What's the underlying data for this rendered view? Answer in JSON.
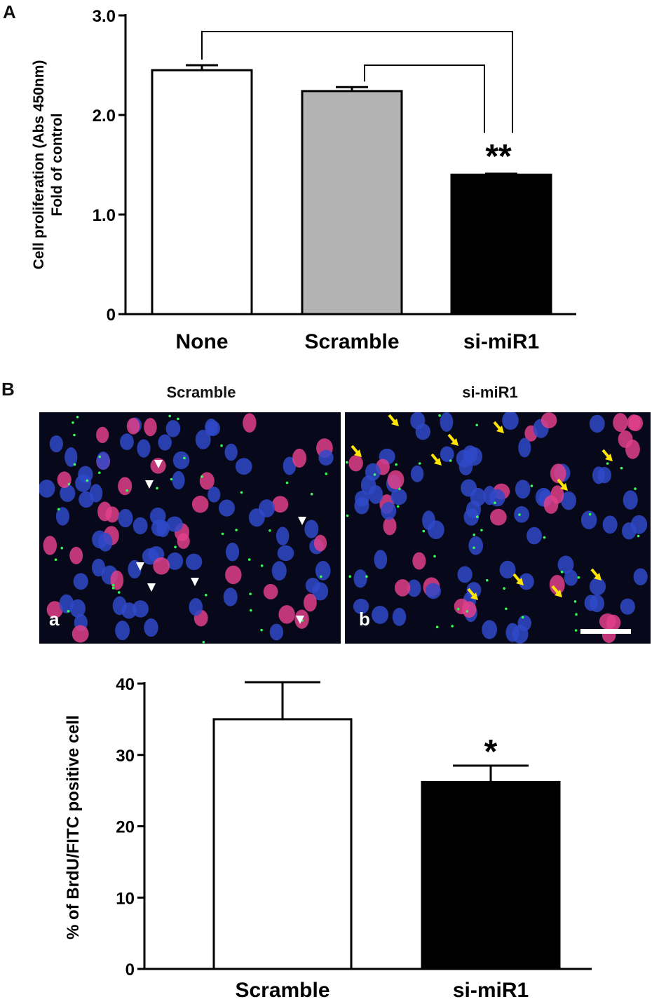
{
  "panel_a": {
    "letter": "A"
  },
  "panel_b": {
    "letter": "B",
    "titles": [
      "Scramble",
      "si-miR1"
    ],
    "sublabels": [
      "a",
      "b"
    ],
    "colors": {
      "image_bg": "#07081a",
      "nucleus_blue": "#2f49c9",
      "nucleus_pink": "#e0408a",
      "arrow_yellow": "#ffe600",
      "arrowhead_white": "#ffffff",
      "dot_green": "#33ff55"
    }
  },
  "chart_data": [
    {
      "type": "bar",
      "categories": [
        "None",
        "Scramble",
        "si-miR1"
      ],
      "values": [
        2.45,
        2.24,
        1.4
      ],
      "errors": [
        0.05,
        0.04,
        0.01
      ],
      "colors": [
        "#ffffff",
        "#b3b3b3",
        "#000000"
      ],
      "ylabel": [
        "Cell proliferation (Abs 450nm)",
        "Fold of control"
      ],
      "ylim": [
        0,
        3.0
      ],
      "yticks": [
        0,
        1.0,
        2.0,
        3.0
      ],
      "ytick_labels": [
        "0",
        "1.0",
        "2.0",
        "3.0"
      ],
      "annotation": "**",
      "grid": false
    },
    {
      "type": "bar",
      "categories": [
        "Scramble",
        "si-miR1"
      ],
      "values": [
        35,
        26.2
      ],
      "errors": [
        5.2,
        2.3
      ],
      "colors": [
        "#ffffff",
        "#000000"
      ],
      "ylabel": "% of BrdU/FITC positive cell",
      "ylim": [
        0,
        40
      ],
      "yticks": [
        0,
        10,
        20,
        30,
        40
      ],
      "ytick_labels": [
        "0",
        "10",
        "20",
        "30",
        "40"
      ],
      "annotation": "*",
      "grid": false
    }
  ]
}
